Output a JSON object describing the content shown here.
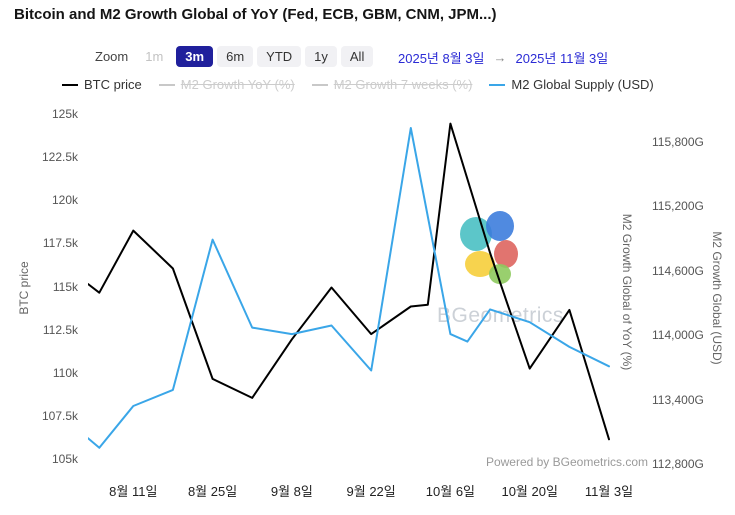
{
  "title": "Bitcoin and M2 Growth Global of YoY (Fed, ECB, GBM, CNM, JPM...)",
  "toolbar": {
    "zoom_label": "Zoom",
    "buttons": [
      {
        "label": "1m",
        "active": false,
        "disabled": true
      },
      {
        "label": "3m",
        "active": true,
        "disabled": false
      },
      {
        "label": "6m",
        "active": false,
        "disabled": false
      },
      {
        "label": "YTD",
        "active": false,
        "disabled": false
      },
      {
        "label": "1y",
        "active": false,
        "disabled": false
      },
      {
        "label": "All",
        "active": false,
        "disabled": false
      }
    ],
    "range_from": "2025년 8월 3일",
    "range_arrow": "→",
    "range_to": "2025년 11월 3일"
  },
  "legend": [
    {
      "label": "BTC price",
      "color": "#000000",
      "enabled": true
    },
    {
      "label": "M2 Growth YoY (%)",
      "color": "#c8c8c8",
      "enabled": false
    },
    {
      "label": "M2 Growth 7 weeks (%)",
      "color": "#c8c8c8",
      "enabled": false
    },
    {
      "label": "M2 Global Supply (USD)",
      "color": "#3aa6e8",
      "enabled": true
    }
  ],
  "watermark": {
    "text": "BGeometrics"
  },
  "powered_by": "Powered by BGeometrics.com",
  "chart_data": {
    "type": "line",
    "title": "Bitcoin and M2 Growth Global of YoY (Fed, ECB, GBM, CNM, JPM...)",
    "x_unit": "days since 2025-08-03",
    "x_range_days": 92,
    "x_ticks": [
      {
        "day": 8,
        "label": "8월 11일"
      },
      {
        "day": 22,
        "label": "8월 25일"
      },
      {
        "day": 36,
        "label": "9월 8일"
      },
      {
        "day": 50,
        "label": "9월 22일"
      },
      {
        "day": 64,
        "label": "10월 6일"
      },
      {
        "day": 78,
        "label": "10월 20일"
      },
      {
        "day": 92,
        "label": "11월 3일"
      }
    ],
    "left_axis": {
      "title": "BTC price",
      "min": 105000,
      "max": 125000,
      "ticks": [
        {
          "value": 105000,
          "label": "105k"
        },
        {
          "value": 107500,
          "label": "107.5k"
        },
        {
          "value": 110000,
          "label": "110k"
        },
        {
          "value": 112500,
          "label": "112.5k"
        },
        {
          "value": 115000,
          "label": "115k"
        },
        {
          "value": 117500,
          "label": "117.5k"
        },
        {
          "value": 120000,
          "label": "120k"
        },
        {
          "value": 122500,
          "label": "122.5k"
        },
        {
          "value": 125000,
          "label": "125k"
        }
      ]
    },
    "right_axis": {
      "title": "M2 Growth Global (USD)",
      "min": 112800,
      "max": 115800,
      "ticks": [
        {
          "value": 112800,
          "label": "112,800G"
        },
        {
          "value": 113400,
          "label": "113,400G"
        },
        {
          "value": 114000,
          "label": "114,000G"
        },
        {
          "value": 114600,
          "label": "114,600G"
        },
        {
          "value": 115200,
          "label": "115,200G"
        },
        {
          "value": 115800,
          "label": "115,800G"
        }
      ]
    },
    "right_axis_yoy_title": "M2 Growth Global of YoY (%)",
    "series": [
      {
        "name": "BTC price",
        "axis": "left",
        "color": "#000000",
        "points": [
          {
            "x": 0,
            "y": 115200
          },
          {
            "x": 2,
            "y": 114700
          },
          {
            "x": 8,
            "y": 118300
          },
          {
            "x": 15,
            "y": 116100
          },
          {
            "x": 22,
            "y": 109700
          },
          {
            "x": 29,
            "y": 108600
          },
          {
            "x": 36,
            "y": 112000
          },
          {
            "x": 43,
            "y": 115000
          },
          {
            "x": 50,
            "y": 112300
          },
          {
            "x": 57,
            "y": 113900
          },
          {
            "x": 60,
            "y": 114000
          },
          {
            "x": 64,
            "y": 124500
          },
          {
            "x": 71,
            "y": 117000
          },
          {
            "x": 74,
            "y": 114100
          },
          {
            "x": 78,
            "y": 110300
          },
          {
            "x": 85,
            "y": 113700
          },
          {
            "x": 92,
            "y": 106200
          }
        ]
      },
      {
        "name": "M2 Global Supply (USD)",
        "axis": "right",
        "color": "#3aa6e8",
        "points": [
          {
            "x": 0,
            "y": 113050
          },
          {
            "x": 2,
            "y": 112960
          },
          {
            "x": 8,
            "y": 113350
          },
          {
            "x": 15,
            "y": 113500
          },
          {
            "x": 22,
            "y": 114900
          },
          {
            "x": 29,
            "y": 114080
          },
          {
            "x": 36,
            "y": 114020
          },
          {
            "x": 43,
            "y": 114100
          },
          {
            "x": 50,
            "y": 113680
          },
          {
            "x": 57,
            "y": 115940
          },
          {
            "x": 64,
            "y": 114020
          },
          {
            "x": 67,
            "y": 113950
          },
          {
            "x": 71,
            "y": 114250
          },
          {
            "x": 78,
            "y": 114130
          },
          {
            "x": 85,
            "y": 113900
          },
          {
            "x": 92,
            "y": 113720
          }
        ]
      }
    ]
  }
}
